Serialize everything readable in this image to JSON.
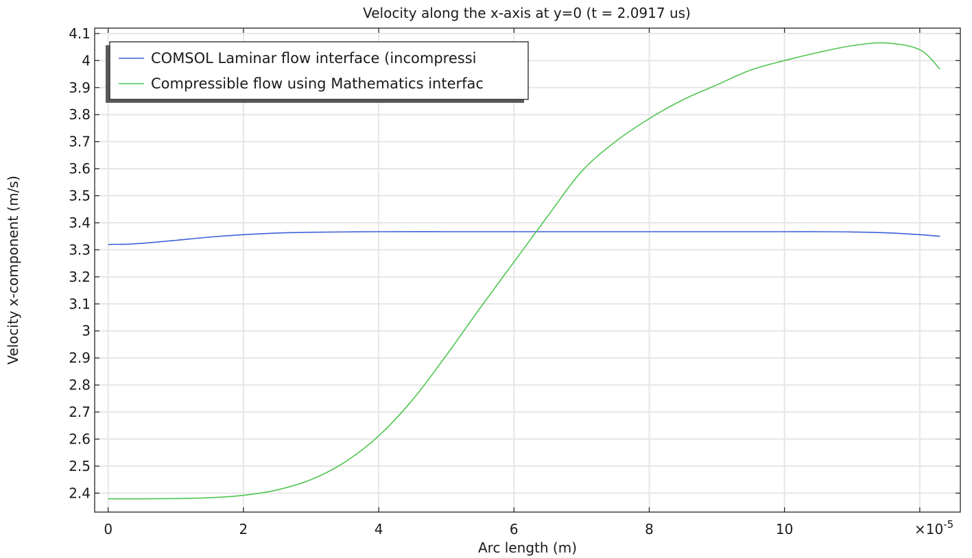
{
  "chart_data": {
    "type": "line",
    "title": "Velocity along the x-axis at y=0 (t = 2.0917 us)",
    "xlabel": "Arc length (m)",
    "ylabel": "Velocity x-component  (m/s)",
    "x_multiplier_label": "×10",
    "x_multiplier_exponent": "-5",
    "x_scale": 1e-05,
    "xlim": [
      -0.2,
      12.6
    ],
    "ylim": [
      2.33,
      4.12
    ],
    "x_ticks": [
      "0",
      "2",
      "4",
      "6",
      "8",
      "10"
    ],
    "x_tick_values": [
      0,
      2,
      4,
      6,
      8,
      10
    ],
    "y_ticks": [
      "2.4",
      "2.5",
      "2.6",
      "2.7",
      "2.8",
      "2.9",
      "3",
      "3.1",
      "3.2",
      "3.3",
      "3.4",
      "3.5",
      "3.6",
      "3.7",
      "3.8",
      "3.9",
      "4",
      "4.1"
    ],
    "y_tick_values": [
      2.4,
      2.5,
      2.6,
      2.7,
      2.8,
      2.9,
      3.0,
      3.1,
      3.2,
      3.3,
      3.4,
      3.5,
      3.6,
      3.7,
      3.8,
      3.9,
      4.0,
      4.1
    ],
    "grid": true,
    "legend_position": "top-left",
    "series": [
      {
        "name": "COMSOL Laminar flow interface (incompressi",
        "color": "#3d5fdb",
        "x": [
          0,
          0.3,
          0.6,
          1,
          1.5,
          2,
          2.5,
          3,
          4,
          5,
          6,
          7,
          8,
          9,
          10,
          10.5,
          11,
          11.5,
          12,
          12.3
        ],
        "y": [
          3.32,
          3.321,
          3.326,
          3.335,
          3.347,
          3.356,
          3.362,
          3.365,
          3.367,
          3.367,
          3.367,
          3.367,
          3.367,
          3.367,
          3.367,
          3.367,
          3.366,
          3.363,
          3.356,
          3.35
        ]
      },
      {
        "name": "Compressible flow using Mathematics interfac",
        "color": "#4ec44e",
        "x": [
          0,
          0.5,
          1,
          1.5,
          2,
          2.5,
          3,
          3.5,
          4,
          4.5,
          5,
          5.5,
          6,
          6.5,
          7,
          7.5,
          8,
          8.5,
          9,
          9.5,
          10,
          10.5,
          11,
          11.5,
          12,
          12.3
        ],
        "y": [
          2.379,
          2.379,
          2.38,
          2.383,
          2.392,
          2.412,
          2.45,
          2.515,
          2.612,
          2.745,
          2.91,
          3.085,
          3.255,
          3.425,
          3.59,
          3.7,
          3.785,
          3.855,
          3.91,
          3.965,
          4.0,
          4.03,
          4.055,
          4.065,
          4.04,
          3.968
        ]
      }
    ]
  }
}
